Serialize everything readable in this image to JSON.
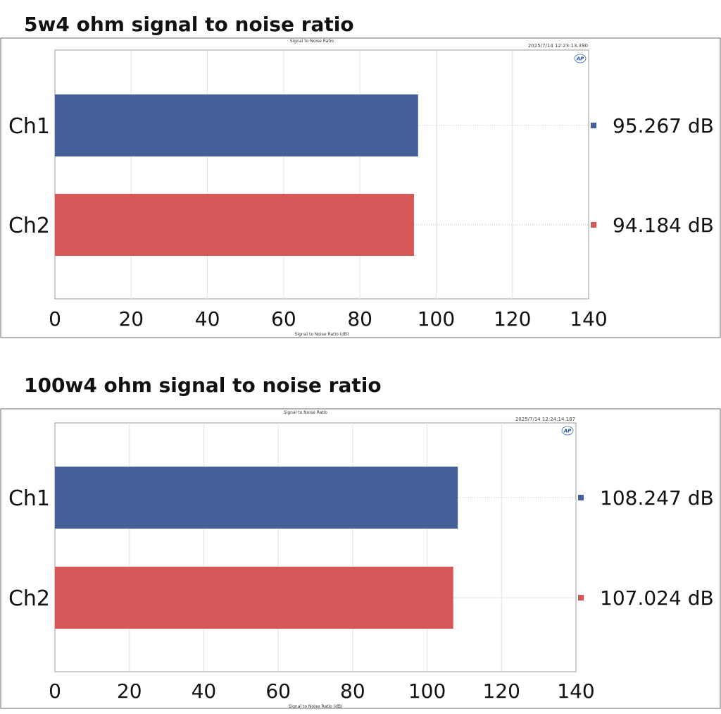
{
  "chart_data": [
    {
      "type": "bar",
      "orientation": "horizontal",
      "section_title": "5w4 ohm signal to noise ratio",
      "title": "Signal to Noise Ratio",
      "timestamp": "2025/7/14 12:23:13.390",
      "logo": "AP",
      "xlabel": "Signal to Noise Ratio (dB)",
      "xlim": [
        0,
        140
      ],
      "xticks": [
        "0",
        "20",
        "40",
        "60",
        "80",
        "100",
        "120",
        "140"
      ],
      "categories": [
        "Ch1",
        "Ch2"
      ],
      "values": [
        95.267,
        94.184
      ],
      "value_labels": [
        "95.267 dB",
        "94.184 dB"
      ],
      "colors": [
        "#46609a",
        "#d55757"
      ],
      "grid": true,
      "legend_position": "right"
    },
    {
      "type": "bar",
      "orientation": "horizontal",
      "section_title": "100w4 ohm signal to noise ratio",
      "title": "Signal to Noise Ratio",
      "timestamp": "2025/7/14 12:24:14.187",
      "logo": "AP",
      "xlabel": "Signal to Noise Ratio (dB)",
      "xlim": [
        0,
        140
      ],
      "xticks": [
        "0",
        "20",
        "40",
        "60",
        "80",
        "100",
        "120",
        "140"
      ],
      "categories": [
        "Ch1",
        "Ch2"
      ],
      "values": [
        108.247,
        107.024
      ],
      "value_labels": [
        "108.247 dB",
        "107.024 dB"
      ],
      "colors": [
        "#46609a",
        "#d55757"
      ],
      "grid": true,
      "legend_position": "right"
    }
  ]
}
